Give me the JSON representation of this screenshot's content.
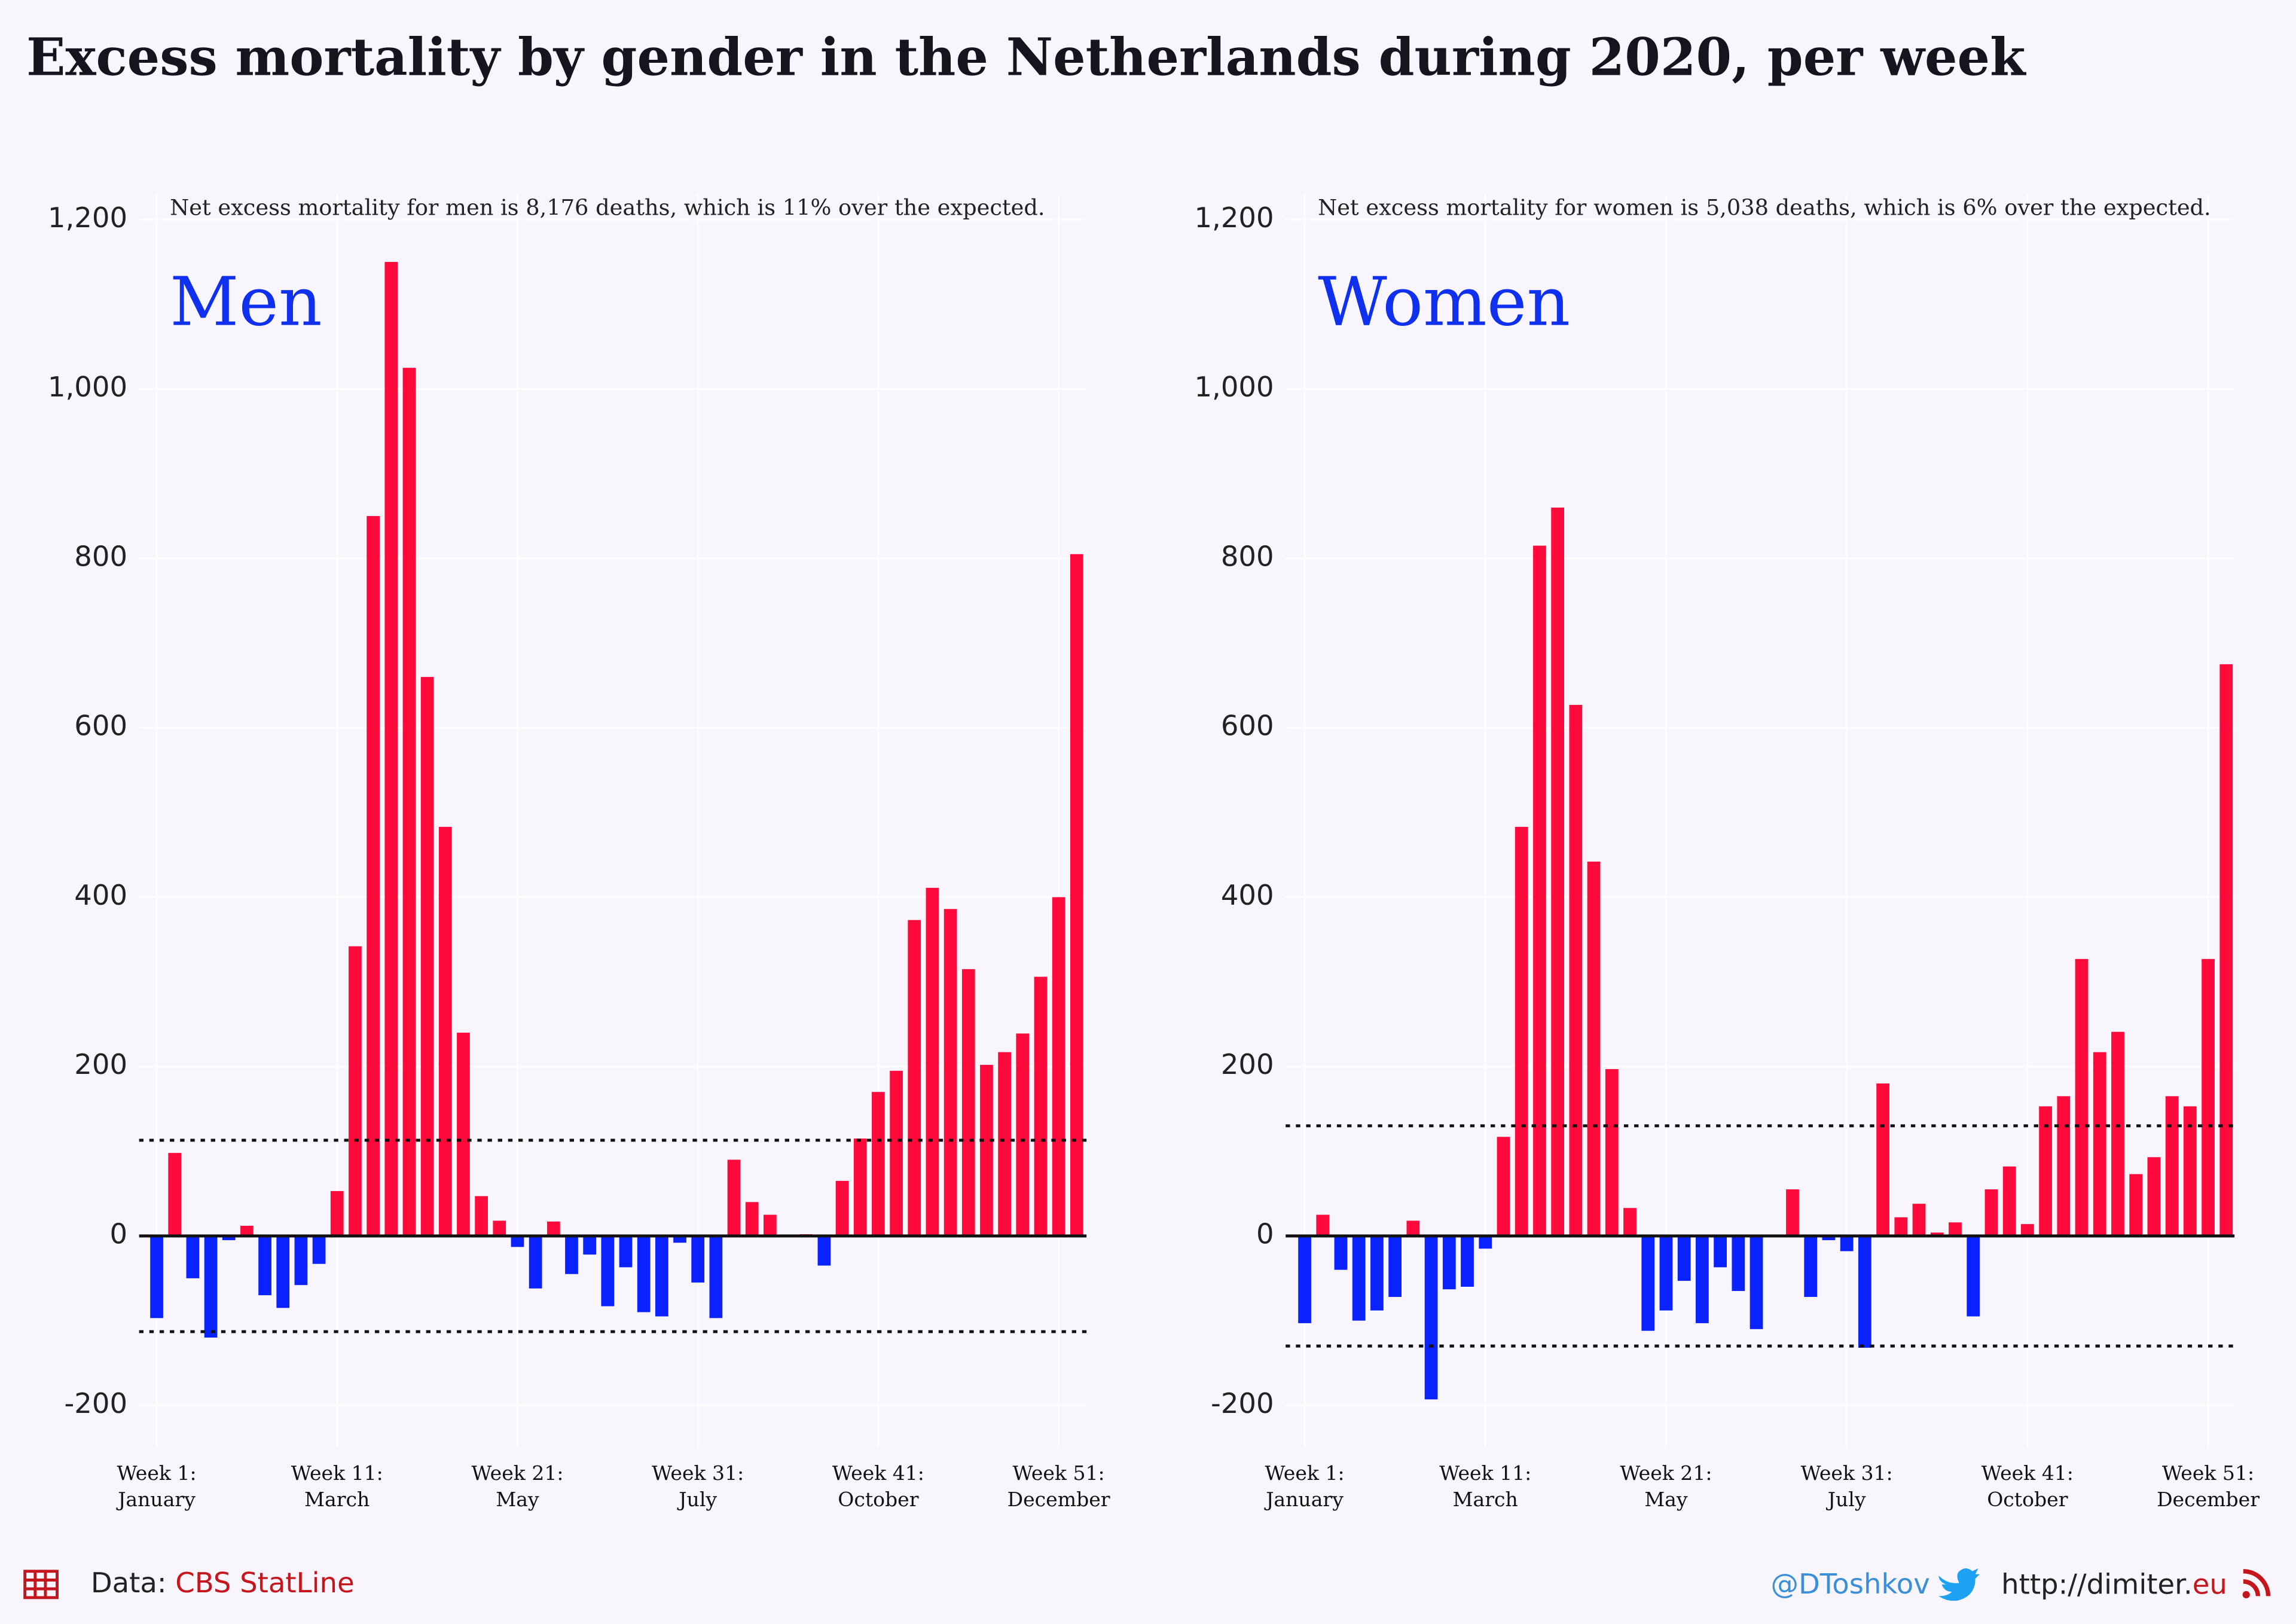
{
  "title": "Excess mortality by gender in the Netherlands during 2020, per week",
  "chart_data": [
    {
      "type": "bar",
      "label": "Men",
      "annotation": "Net excess mortality for men is 8,176 deaths, which is 11% over the expected.",
      "categories": [
        "Week 1:\nJanuary",
        null,
        null,
        null,
        null,
        null,
        null,
        null,
        null,
        null,
        "Week 11:\nMarch",
        null,
        null,
        null,
        null,
        null,
        null,
        null,
        null,
        null,
        "Week 21:\nMay",
        null,
        null,
        null,
        null,
        null,
        null,
        null,
        null,
        null,
        "Week 31:\nJuly",
        null,
        null,
        null,
        null,
        null,
        null,
        null,
        null,
        null,
        "Week 41:\nOctober",
        null,
        null,
        null,
        null,
        null,
        null,
        null,
        null,
        null,
        "Week 51:\nDecember",
        null
      ],
      "values": [
        -97,
        98,
        -50,
        -120,
        -5,
        12,
        -70,
        -85,
        -58,
        -33,
        53,
        342,
        850,
        1150,
        1025,
        660,
        483,
        240,
        47,
        18,
        -13,
        -62,
        17,
        -45,
        -22,
        -83,
        -37,
        -90,
        -95,
        -8,
        -55,
        -97,
        90,
        40,
        25,
        0,
        2,
        -35,
        65,
        115,
        170,
        195,
        373,
        411,
        386,
        315,
        202,
        217,
        239,
        306,
        400,
        805
      ],
      "colors": {
        "positive": "#ff0a3a",
        "negative": "#0a22ff"
      },
      "reference_lines": [
        113,
        -113
      ],
      "ylim": [
        -250,
        1230
      ],
      "yticks": [
        -200,
        0,
        200,
        400,
        600,
        800,
        {
          "value": 1000,
          "label": "1,000"
        },
        {
          "value": 1200,
          "label": "1,200"
        }
      ],
      "grid": true
    },
    {
      "type": "bar",
      "label": "Women",
      "annotation": "Net excess mortality for women is 5,038 deaths, which is 6% over the expected.",
      "categories": [
        "Week 1:\nJanuary",
        null,
        null,
        null,
        null,
        null,
        null,
        null,
        null,
        null,
        "Week 11:\nMarch",
        null,
        null,
        null,
        null,
        null,
        null,
        null,
        null,
        null,
        "Week 21:\nMay",
        null,
        null,
        null,
        null,
        null,
        null,
        null,
        null,
        null,
        "Week 31:\nJuly",
        null,
        null,
        null,
        null,
        null,
        null,
        null,
        null,
        null,
        "Week 41:\nOctober",
        null,
        null,
        null,
        null,
        null,
        null,
        null,
        null,
        null,
        "Week 51:\nDecember",
        null
      ],
      "values": [
        -103,
        25,
        -40,
        -100,
        -88,
        -72,
        18,
        -193,
        -63,
        -60,
        -15,
        117,
        483,
        815,
        860,
        627,
        442,
        197,
        33,
        -112,
        -88,
        -53,
        -103,
        -37,
        -65,
        -110,
        0,
        55,
        -72,
        -5,
        -18,
        -132,
        180,
        22,
        38,
        4,
        16,
        -95,
        55,
        82,
        14,
        153,
        165,
        327,
        217,
        241,
        73,
        93,
        165,
        153,
        327,
        675
      ],
      "colors": {
        "positive": "#ff0a3a",
        "negative": "#0a22ff"
      },
      "reference_lines": [
        130,
        -130
      ],
      "ylim": [
        -250,
        1230
      ],
      "yticks": [
        -200,
        0,
        200,
        400,
        600,
        800,
        {
          "value": 1000,
          "label": "1,000"
        },
        {
          "value": 1200,
          "label": "1,200"
        }
      ],
      "grid": true
    }
  ],
  "footer": {
    "source_label": "Data:",
    "source": "CBS StatLine",
    "handle": "@DToshkov",
    "site": "http://dimiter.",
    "site_tld": "eu"
  }
}
